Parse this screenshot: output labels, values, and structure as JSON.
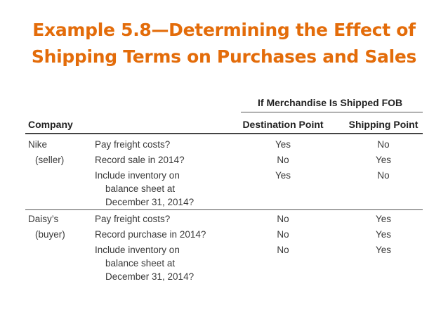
{
  "title": {
    "line1": "Example 5.8—Determining the Effect of",
    "line2": "Shipping Terms on Purchases and Sales"
  },
  "table": {
    "group_header": "If Merchandise Is Shipped FOB",
    "headers": {
      "company": "Company",
      "destination": "Destination Point",
      "shipping": "Shipping Point"
    },
    "sections": [
      {
        "company": "Nike",
        "role": "(seller)",
        "rows": [
          {
            "question": [
              "Pay freight costs?"
            ],
            "destination": "Yes",
            "shipping": "No"
          },
          {
            "question": [
              "Record sale in 2014?"
            ],
            "destination": "No",
            "shipping": "Yes"
          },
          {
            "question": [
              "Include inventory on",
              "balance sheet at",
              "December 31, 2014?"
            ],
            "destination": "Yes",
            "shipping": "No"
          }
        ]
      },
      {
        "company": "Daisy’s",
        "role": "(buyer)",
        "rows": [
          {
            "question": [
              "Pay freight costs?"
            ],
            "destination": "No",
            "shipping": "Yes"
          },
          {
            "question": [
              "Record purchase in 2014?"
            ],
            "destination": "No",
            "shipping": "Yes"
          },
          {
            "question": [
              "Include inventory on",
              "balance sheet at",
              "December 31, 2014?"
            ],
            "destination": "No",
            "shipping": "Yes"
          }
        ]
      }
    ]
  }
}
